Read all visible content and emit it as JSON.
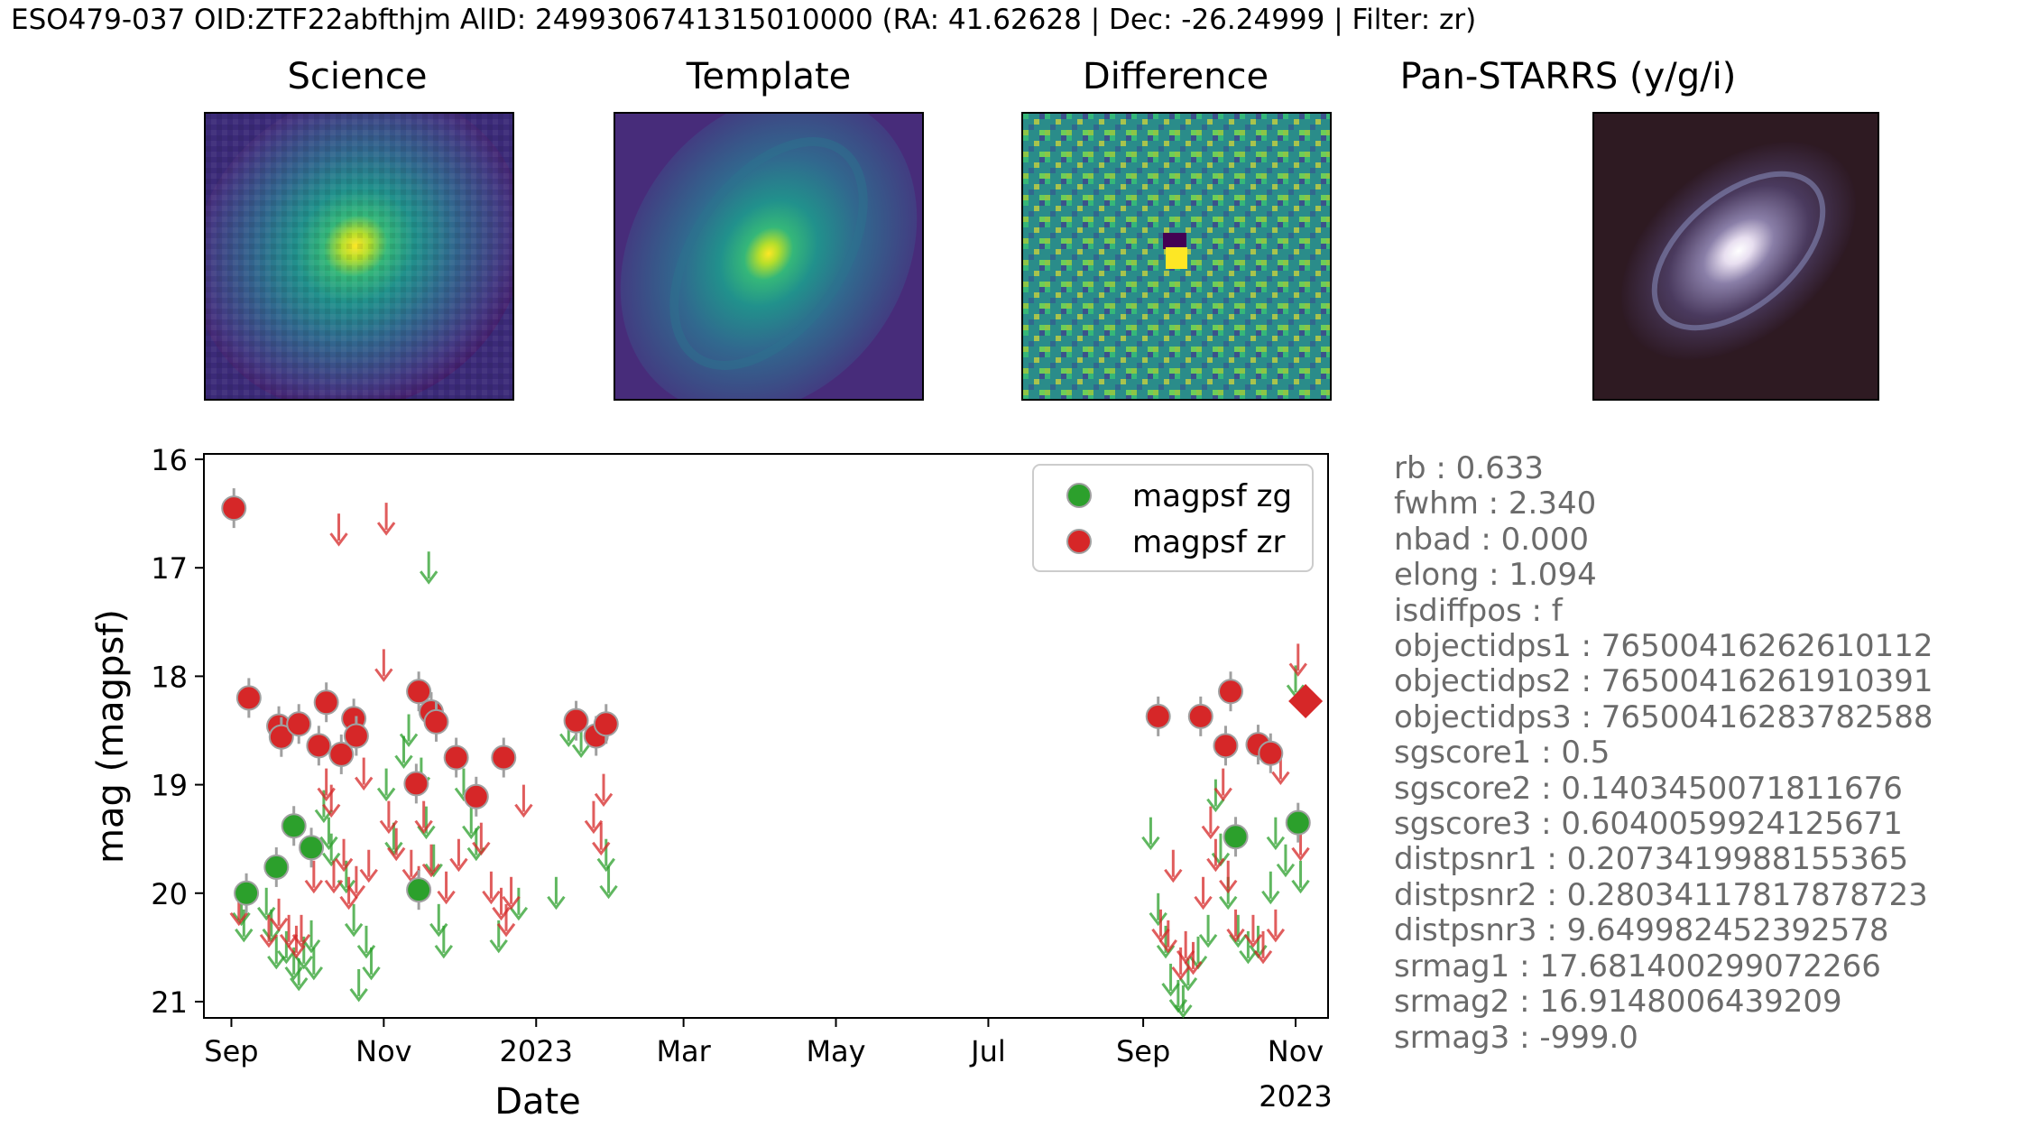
{
  "header": "ESO479-037 OID:ZTF22abfthjm AlID: 2499306741315010000 (RA: 41.62628 | Dec: -26.24999 | Filter: zr)",
  "stamps": [
    {
      "title": "Science",
      "kind": "science"
    },
    {
      "title": "Template",
      "kind": "template"
    },
    {
      "title": "Difference",
      "kind": "difference"
    },
    {
      "title": "Pan-STARRS (y/g/i)",
      "kind": "panstarrs"
    }
  ],
  "stats": [
    "rb : 0.633",
    "fwhm : 2.340",
    "nbad : 0.000",
    "elong : 1.094",
    "isdiffpos : f",
    "objectidps1 : 76500416262610112",
    "objectidps2 : 76500416261910391",
    "objectidps3 : 76500416283782588",
    "sgscore1 : 0.5",
    "sgscore2 : 0.1403450071811676",
    "sgscore3 : 0.6040059924125671",
    "distpsnr1 : 0.2073419988155365",
    "distpsnr2 : 0.28034117817878723",
    "distpsnr3 : 9.649982452392578",
    "srmag1 : 17.681400299072266",
    "srmag2 : 16.9148006439209",
    "srmag3 : -999.0"
  ],
  "chart_data": {
    "type": "scatter",
    "xlabel": "Date",
    "ylabel": "mag (magpsf)",
    "xlim": [
      "2022-08-21",
      "2023-11-14"
    ],
    "ylim": [
      21.15,
      15.95
    ],
    "y_inverted": true,
    "yticks": [
      16,
      17,
      18,
      19,
      20,
      21
    ],
    "xticks": [
      {
        "date": "2022-09-01",
        "label": "Sep"
      },
      {
        "date": "2022-11-01",
        "label": "Nov"
      },
      {
        "date": "2023-01-01",
        "label": "2023"
      },
      {
        "date": "2023-03-01",
        "label": "Mar"
      },
      {
        "date": "2023-05-01",
        "label": "May"
      },
      {
        "date": "2023-07-01",
        "label": "Jul"
      },
      {
        "date": "2023-09-01",
        "label": "Sep"
      },
      {
        "date": "2023-11-01",
        "label": "Nov\n2023"
      }
    ],
    "legend": {
      "position": "top-right",
      "entries": [
        "magpsf zg",
        "magpsf zr"
      ]
    },
    "colors": {
      "zg": "#2ca02c",
      "zr": "#d62728",
      "errorbar": "#a0a0a0"
    },
    "series": [
      {
        "name": "magpsf zg",
        "filter": "zg",
        "kind": "detection",
        "points": [
          {
            "date": "2022-09-07",
            "mag": 20.0
          },
          {
            "date": "2022-09-19",
            "mag": 19.76
          },
          {
            "date": "2022-09-26",
            "mag": 19.38
          },
          {
            "date": "2022-10-03",
            "mag": 19.58
          },
          {
            "date": "2022-11-15",
            "mag": 19.97
          },
          {
            "date": "2023-10-08",
            "mag": 19.48
          },
          {
            "date": "2023-11-02",
            "mag": 19.35
          }
        ]
      },
      {
        "name": "magpsf zr",
        "filter": "zr",
        "kind": "detection",
        "points": [
          {
            "date": "2022-09-02",
            "mag": 16.45
          },
          {
            "date": "2022-09-08",
            "mag": 18.2
          },
          {
            "date": "2022-09-20",
            "mag": 18.46
          },
          {
            "date": "2022-09-21",
            "mag": 18.56
          },
          {
            "date": "2022-09-28",
            "mag": 18.44
          },
          {
            "date": "2022-10-06",
            "mag": 18.64
          },
          {
            "date": "2022-10-09",
            "mag": 18.24
          },
          {
            "date": "2022-10-15",
            "mag": 18.72
          },
          {
            "date": "2022-10-20",
            "mag": 18.39
          },
          {
            "date": "2022-10-21",
            "mag": 18.55
          },
          {
            "date": "2022-11-14",
            "mag": 18.99
          },
          {
            "date": "2022-11-15",
            "mag": 18.14
          },
          {
            "date": "2022-11-20",
            "mag": 18.33
          },
          {
            "date": "2022-11-22",
            "mag": 18.42
          },
          {
            "date": "2022-11-30",
            "mag": 18.75
          },
          {
            "date": "2022-12-08",
            "mag": 19.11
          },
          {
            "date": "2022-12-19",
            "mag": 18.75
          },
          {
            "date": "2023-01-17",
            "mag": 18.41
          },
          {
            "date": "2023-01-25",
            "mag": 18.55
          },
          {
            "date": "2023-01-29",
            "mag": 18.44
          },
          {
            "date": "2023-09-07",
            "mag": 18.37
          },
          {
            "date": "2023-09-24",
            "mag": 18.37
          },
          {
            "date": "2023-10-04",
            "mag": 18.64
          },
          {
            "date": "2023-10-06",
            "mag": 18.14
          },
          {
            "date": "2023-10-17",
            "mag": 18.63
          },
          {
            "date": "2023-10-22",
            "mag": 18.71
          }
        ]
      },
      {
        "name": "",
        "filter": "zr",
        "kind": "latest-alert",
        "points": [
          {
            "date": "2023-11-05",
            "mag": 18.23
          }
        ]
      },
      {
        "name": "",
        "filter": "zg",
        "kind": "upper-limit",
        "points": [
          {
            "date": "2022-09-05",
            "mag": 20.15
          },
          {
            "date": "2022-09-06",
            "mag": 20.3
          },
          {
            "date": "2022-09-15",
            "mag": 20.1
          },
          {
            "date": "2022-09-17",
            "mag": 20.3
          },
          {
            "date": "2022-09-19",
            "mag": 20.55
          },
          {
            "date": "2022-09-23",
            "mag": 20.5
          },
          {
            "date": "2022-09-26",
            "mag": 20.65
          },
          {
            "date": "2022-09-28",
            "mag": 20.75
          },
          {
            "date": "2022-09-30",
            "mag": 20.55
          },
          {
            "date": "2022-10-03",
            "mag": 20.4
          },
          {
            "date": "2022-10-04",
            "mag": 20.65
          },
          {
            "date": "2022-10-08",
            "mag": 19.2
          },
          {
            "date": "2022-10-10",
            "mag": 19.45
          },
          {
            "date": "2022-10-11",
            "mag": 19.6
          },
          {
            "date": "2022-10-17",
            "mag": 19.85
          },
          {
            "date": "2022-10-20",
            "mag": 20.25
          },
          {
            "date": "2022-10-22",
            "mag": 20.85
          },
          {
            "date": "2022-10-25",
            "mag": 20.45
          },
          {
            "date": "2022-10-27",
            "mag": 20.65
          },
          {
            "date": "2022-11-02",
            "mag": 19.0
          },
          {
            "date": "2022-11-05",
            "mag": 19.5
          },
          {
            "date": "2022-11-09",
            "mag": 18.7
          },
          {
            "date": "2022-11-11",
            "mag": 18.5
          },
          {
            "date": "2022-11-16",
            "mag": 18.9
          },
          {
            "date": "2022-11-18",
            "mag": 19.35
          },
          {
            "date": "2022-11-19",
            "mag": 17.0
          },
          {
            "date": "2022-11-21",
            "mag": 19.7
          },
          {
            "date": "2022-11-23",
            "mag": 20.25
          },
          {
            "date": "2022-11-25",
            "mag": 20.45
          },
          {
            "date": "2022-12-03",
            "mag": 19.0
          },
          {
            "date": "2022-12-06",
            "mag": 19.35
          },
          {
            "date": "2022-12-08",
            "mag": 19.55
          },
          {
            "date": "2022-12-17",
            "mag": 20.4
          },
          {
            "date": "2022-12-25",
            "mag": 20.1
          },
          {
            "date": "2023-01-09",
            "mag": 20.0
          },
          {
            "date": "2023-01-14",
            "mag": 18.5
          },
          {
            "date": "2023-01-19",
            "mag": 18.6
          },
          {
            "date": "2023-01-29",
            "mag": 19.65
          },
          {
            "date": "2023-01-30",
            "mag": 19.9
          },
          {
            "date": "2023-09-04",
            "mag": 19.45
          },
          {
            "date": "2023-09-07",
            "mag": 20.15
          },
          {
            "date": "2023-09-10",
            "mag": 20.45
          },
          {
            "date": "2023-09-12",
            "mag": 20.8
          },
          {
            "date": "2023-09-15",
            "mag": 20.95
          },
          {
            "date": "2023-09-17",
            "mag": 21.0
          },
          {
            "date": "2023-09-19",
            "mag": 20.75
          },
          {
            "date": "2023-09-23",
            "mag": 20.55
          },
          {
            "date": "2023-09-27",
            "mag": 20.35
          },
          {
            "date": "2023-09-30",
            "mag": 19.1
          },
          {
            "date": "2023-10-02",
            "mag": 19.6
          },
          {
            "date": "2023-10-05",
            "mag": 20.0
          },
          {
            "date": "2023-10-09",
            "mag": 20.35
          },
          {
            "date": "2023-10-13",
            "mag": 20.5
          },
          {
            "date": "2023-10-17",
            "mag": 20.45
          },
          {
            "date": "2023-10-22",
            "mag": 19.95
          },
          {
            "date": "2023-10-24",
            "mag": 19.45
          },
          {
            "date": "2023-10-28",
            "mag": 19.7
          },
          {
            "date": "2023-11-01",
            "mag": 18.05
          },
          {
            "date": "2023-11-03",
            "mag": 19.85
          }
        ]
      },
      {
        "name": "",
        "filter": "zr",
        "kind": "upper-limit",
        "points": [
          {
            "date": "2022-09-04",
            "mag": 20.15
          },
          {
            "date": "2022-09-16",
            "mag": 20.35
          },
          {
            "date": "2022-09-20",
            "mag": 20.2
          },
          {
            "date": "2022-09-24",
            "mag": 20.35
          },
          {
            "date": "2022-09-27",
            "mag": 20.45
          },
          {
            "date": "2022-09-29",
            "mag": 20.35
          },
          {
            "date": "2022-10-04",
            "mag": 19.85
          },
          {
            "date": "2022-10-09",
            "mag": 19.0
          },
          {
            "date": "2022-10-11",
            "mag": 19.15
          },
          {
            "date": "2022-10-12",
            "mag": 19.85
          },
          {
            "date": "2022-10-14",
            "mag": 16.65
          },
          {
            "date": "2022-10-16",
            "mag": 19.65
          },
          {
            "date": "2022-10-18",
            "mag": 20.0
          },
          {
            "date": "2022-10-21",
            "mag": 19.9
          },
          {
            "date": "2022-10-24",
            "mag": 18.9
          },
          {
            "date": "2022-10-26",
            "mag": 19.75
          },
          {
            "date": "2022-11-01",
            "mag": 17.9
          },
          {
            "date": "2022-11-02",
            "mag": 16.55
          },
          {
            "date": "2022-11-03",
            "mag": 19.3
          },
          {
            "date": "2022-11-06",
            "mag": 19.55
          },
          {
            "date": "2022-11-12",
            "mag": 19.75
          },
          {
            "date": "2022-11-15",
            "mag": 19.9
          },
          {
            "date": "2022-11-17",
            "mag": 19.3
          },
          {
            "date": "2022-11-20",
            "mag": 19.7
          },
          {
            "date": "2022-11-26",
            "mag": 19.95
          },
          {
            "date": "2022-12-01",
            "mag": 19.65
          },
          {
            "date": "2022-12-10",
            "mag": 19.5
          },
          {
            "date": "2022-12-14",
            "mag": 19.95
          },
          {
            "date": "2022-12-18",
            "mag": 20.1
          },
          {
            "date": "2022-12-20",
            "mag": 20.25
          },
          {
            "date": "2022-12-22",
            "mag": 20.0
          },
          {
            "date": "2022-12-27",
            "mag": 19.15
          },
          {
            "date": "2023-01-24",
            "mag": 19.3
          },
          {
            "date": "2023-01-27",
            "mag": 19.5
          },
          {
            "date": "2023-01-28",
            "mag": 19.05
          },
          {
            "date": "2023-09-08",
            "mag": 20.3
          },
          {
            "date": "2023-09-11",
            "mag": 20.4
          },
          {
            "date": "2023-09-13",
            "mag": 19.75
          },
          {
            "date": "2023-09-16",
            "mag": 20.65
          },
          {
            "date": "2023-09-18",
            "mag": 20.5
          },
          {
            "date": "2023-09-21",
            "mag": 20.6
          },
          {
            "date": "2023-09-25",
            "mag": 20.0
          },
          {
            "date": "2023-09-28",
            "mag": 19.35
          },
          {
            "date": "2023-09-30",
            "mag": 19.65
          },
          {
            "date": "2023-10-03",
            "mag": 19.0
          },
          {
            "date": "2023-10-05",
            "mag": 19.85
          },
          {
            "date": "2023-10-08",
            "mag": 20.3
          },
          {
            "date": "2023-10-15",
            "mag": 20.35
          },
          {
            "date": "2023-10-19",
            "mag": 20.5
          },
          {
            "date": "2023-10-24",
            "mag": 20.3
          },
          {
            "date": "2023-10-26",
            "mag": 18.85
          },
          {
            "date": "2023-11-02",
            "mag": 17.85
          },
          {
            "date": "2023-11-03",
            "mag": 19.55
          }
        ]
      }
    ]
  }
}
